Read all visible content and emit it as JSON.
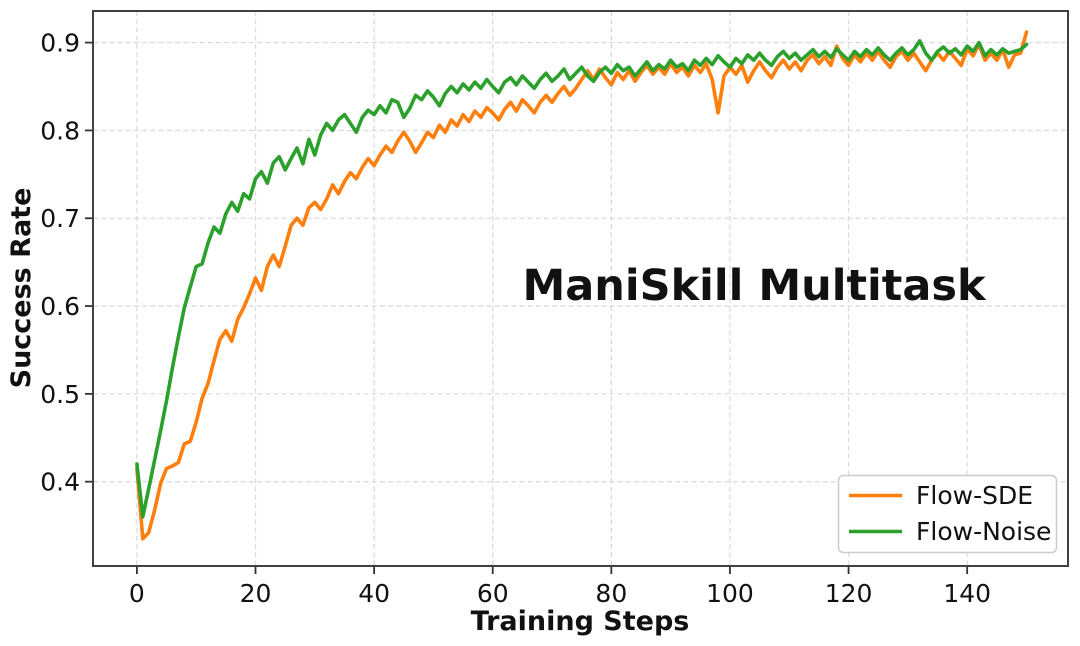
{
  "chart_data": {
    "type": "line",
    "annotation": "ManiSkill Multitask",
    "annotation_color": "#4d4d4d",
    "xlabel": "Training Steps",
    "ylabel": "Success Rate",
    "xlim": [
      -7.4,
      157.0
    ],
    "ylim": [
      0.304,
      0.936
    ],
    "xticks": [
      0,
      20,
      40,
      60,
      80,
      100,
      120,
      140
    ],
    "yticks": [
      0.4,
      0.5,
      0.6,
      0.7,
      0.8,
      0.9
    ],
    "grid": true,
    "grid_style": "dashed",
    "grid_color": "#dcdcdc",
    "frame_color": "#404040",
    "legend_position": "lower right",
    "x_start": 0,
    "x_step": 1,
    "series": [
      {
        "name": "Flow-SDE",
        "color": "#ff7f0e",
        "values": [
          0.415,
          0.335,
          0.342,
          0.368,
          0.398,
          0.415,
          0.418,
          0.422,
          0.443,
          0.446,
          0.468,
          0.495,
          0.512,
          0.538,
          0.562,
          0.572,
          0.56,
          0.585,
          0.598,
          0.614,
          0.632,
          0.618,
          0.645,
          0.658,
          0.645,
          0.668,
          0.692,
          0.7,
          0.692,
          0.712,
          0.718,
          0.71,
          0.722,
          0.738,
          0.728,
          0.742,
          0.752,
          0.745,
          0.758,
          0.768,
          0.76,
          0.772,
          0.782,
          0.775,
          0.788,
          0.798,
          0.788,
          0.775,
          0.786,
          0.798,
          0.792,
          0.806,
          0.798,
          0.812,
          0.805,
          0.818,
          0.81,
          0.822,
          0.815,
          0.826,
          0.82,
          0.812,
          0.824,
          0.832,
          0.822,
          0.835,
          0.828,
          0.82,
          0.832,
          0.84,
          0.832,
          0.842,
          0.85,
          0.84,
          0.848,
          0.858,
          0.868,
          0.858,
          0.87,
          0.86,
          0.852,
          0.866,
          0.858,
          0.868,
          0.856,
          0.866,
          0.874,
          0.864,
          0.872,
          0.864,
          0.876,
          0.866,
          0.872,
          0.862,
          0.874,
          0.866,
          0.876,
          0.858,
          0.82,
          0.862,
          0.872,
          0.864,
          0.874,
          0.855,
          0.868,
          0.878,
          0.868,
          0.86,
          0.872,
          0.88,
          0.87,
          0.878,
          0.868,
          0.88,
          0.886,
          0.876,
          0.884,
          0.874,
          0.896,
          0.882,
          0.874,
          0.886,
          0.878,
          0.888,
          0.88,
          0.89,
          0.88,
          0.872,
          0.884,
          0.89,
          0.88,
          0.888,
          0.878,
          0.868,
          0.88,
          0.888,
          0.88,
          0.89,
          0.882,
          0.874,
          0.893,
          0.885,
          0.898,
          0.88,
          0.888,
          0.88,
          0.892,
          0.872,
          0.886,
          0.888,
          0.912
        ]
      },
      {
        "name": "Flow-Noise",
        "color": "#2ca02c",
        "values": [
          0.42,
          0.36,
          0.392,
          0.425,
          0.458,
          0.492,
          0.53,
          0.565,
          0.598,
          0.622,
          0.645,
          0.648,
          0.672,
          0.69,
          0.683,
          0.705,
          0.718,
          0.708,
          0.728,
          0.722,
          0.745,
          0.753,
          0.74,
          0.763,
          0.77,
          0.755,
          0.768,
          0.78,
          0.762,
          0.79,
          0.772,
          0.795,
          0.808,
          0.8,
          0.812,
          0.818,
          0.808,
          0.798,
          0.815,
          0.823,
          0.818,
          0.828,
          0.82,
          0.835,
          0.832,
          0.815,
          0.825,
          0.84,
          0.835,
          0.845,
          0.838,
          0.828,
          0.842,
          0.85,
          0.843,
          0.853,
          0.846,
          0.855,
          0.848,
          0.858,
          0.85,
          0.843,
          0.855,
          0.86,
          0.852,
          0.862,
          0.855,
          0.848,
          0.858,
          0.865,
          0.856,
          0.862,
          0.87,
          0.858,
          0.865,
          0.872,
          0.862,
          0.856,
          0.866,
          0.872,
          0.865,
          0.875,
          0.868,
          0.872,
          0.862,
          0.87,
          0.878,
          0.868,
          0.875,
          0.87,
          0.88,
          0.872,
          0.876,
          0.868,
          0.88,
          0.874,
          0.882,
          0.875,
          0.885,
          0.878,
          0.872,
          0.882,
          0.876,
          0.886,
          0.88,
          0.888,
          0.88,
          0.874,
          0.884,
          0.89,
          0.882,
          0.888,
          0.88,
          0.886,
          0.892,
          0.884,
          0.89,
          0.883,
          0.893,
          0.886,
          0.88,
          0.89,
          0.884,
          0.892,
          0.886,
          0.894,
          0.886,
          0.88,
          0.888,
          0.894,
          0.886,
          0.892,
          0.902,
          0.888,
          0.88,
          0.89,
          0.895,
          0.888,
          0.893,
          0.886,
          0.896,
          0.89,
          0.9,
          0.885,
          0.892,
          0.886,
          0.893,
          0.888,
          0.89,
          0.892,
          0.898
        ]
      }
    ]
  }
}
